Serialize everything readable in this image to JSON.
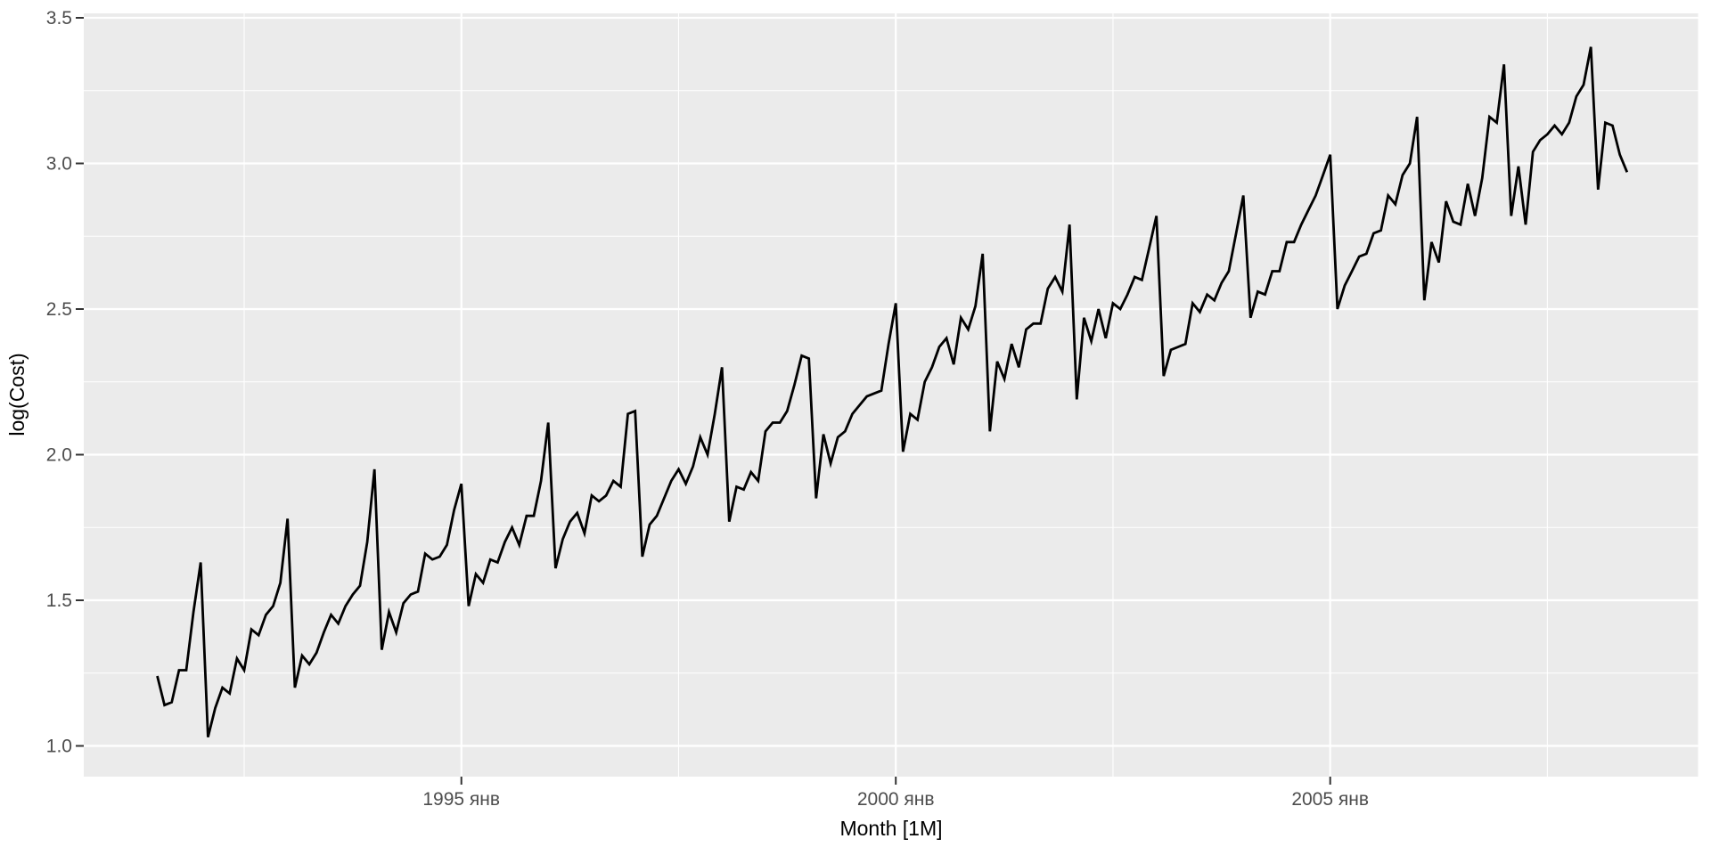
{
  "chart_data": {
    "type": "line",
    "title": "",
    "xlabel": "Month [1M]",
    "ylabel": "log(Cost)",
    "legend": "none",
    "grid": "on",
    "x_axis": {
      "tick_labels": [
        "1995 янв",
        "2000 янв",
        "2005 янв"
      ],
      "tick_month_index": [
        42,
        102,
        162
      ],
      "minor_month_index": [
        12,
        72,
        132,
        192
      ],
      "start": "1991-07",
      "end": "2008-06",
      "frequency": "1 month"
    },
    "y_axis": {
      "tick_labels": [
        "1.0",
        "1.5",
        "2.0",
        "2.5",
        "3.0",
        "3.5"
      ],
      "ticks": [
        1.0,
        1.5,
        2.0,
        2.5,
        3.0,
        3.5
      ],
      "minor_ticks": [
        1.25,
        1.75,
        2.25,
        2.75,
        3.25
      ],
      "range": [
        0.9,
        3.52
      ]
    },
    "series": [
      {
        "name": "log(Cost)",
        "values": [
          1.24,
          1.14,
          1.15,
          1.26,
          1.26,
          1.46,
          1.63,
          1.03,
          1.13,
          1.2,
          1.18,
          1.3,
          1.26,
          1.4,
          1.38,
          1.45,
          1.48,
          1.56,
          1.78,
          1.2,
          1.31,
          1.28,
          1.32,
          1.39,
          1.45,
          1.42,
          1.48,
          1.52,
          1.55,
          1.7,
          1.95,
          1.33,
          1.46,
          1.39,
          1.49,
          1.52,
          1.53,
          1.66,
          1.64,
          1.65,
          1.69,
          1.81,
          1.9,
          1.48,
          1.59,
          1.56,
          1.64,
          1.63,
          1.7,
          1.75,
          1.69,
          1.79,
          1.79,
          1.91,
          2.11,
          1.61,
          1.71,
          1.77,
          1.8,
          1.73,
          1.86,
          1.84,
          1.86,
          1.91,
          1.89,
          2.14,
          2.15,
          1.65,
          1.76,
          1.79,
          1.85,
          1.91,
          1.95,
          1.9,
          1.96,
          2.06,
          2.0,
          2.14,
          2.3,
          1.77,
          1.89,
          1.88,
          1.94,
          1.91,
          2.08,
          2.11,
          2.11,
          2.15,
          2.24,
          2.34,
          2.33,
          1.85,
          2.07,
          1.97,
          2.06,
          2.08,
          2.14,
          2.17,
          2.2,
          2.21,
          2.22,
          2.38,
          2.52,
          2.01,
          2.14,
          2.12,
          2.25,
          2.3,
          2.37,
          2.4,
          2.31,
          2.47,
          2.43,
          2.51,
          2.69,
          2.08,
          2.32,
          2.26,
          2.38,
          2.3,
          2.43,
          2.45,
          2.45,
          2.57,
          2.61,
          2.56,
          2.79,
          2.19,
          2.47,
          2.39,
          2.5,
          2.4,
          2.52,
          2.5,
          2.55,
          2.61,
          2.6,
          2.71,
          2.82,
          2.27,
          2.36,
          2.37,
          2.38,
          2.52,
          2.49,
          2.55,
          2.53,
          2.59,
          2.63,
          2.76,
          2.89,
          2.47,
          2.56,
          2.55,
          2.63,
          2.63,
          2.73,
          2.73,
          2.79,
          2.84,
          2.89,
          2.96,
          3.03,
          2.5,
          2.58,
          2.63,
          2.68,
          2.69,
          2.76,
          2.77,
          2.89,
          2.86,
          2.96,
          3.0,
          3.16,
          2.53,
          2.73,
          2.66,
          2.87,
          2.8,
          2.79,
          2.93,
          2.82,
          2.95,
          3.16,
          3.14,
          3.34,
          2.82,
          2.99,
          2.79,
          3.04,
          3.08,
          3.1,
          3.13,
          3.1,
          3.14,
          3.23,
          3.27,
          3.4,
          2.91,
          3.14,
          3.13,
          3.03,
          2.97
        ]
      }
    ],
    "colors": {
      "page_bg": "#ffffff",
      "panel_bg": "#ebebeb",
      "grid": "#ffffff",
      "line": "#000000",
      "tick_text": "#4d4d4d",
      "tick_mark": "#333333",
      "axis_title": "#000000"
    }
  }
}
